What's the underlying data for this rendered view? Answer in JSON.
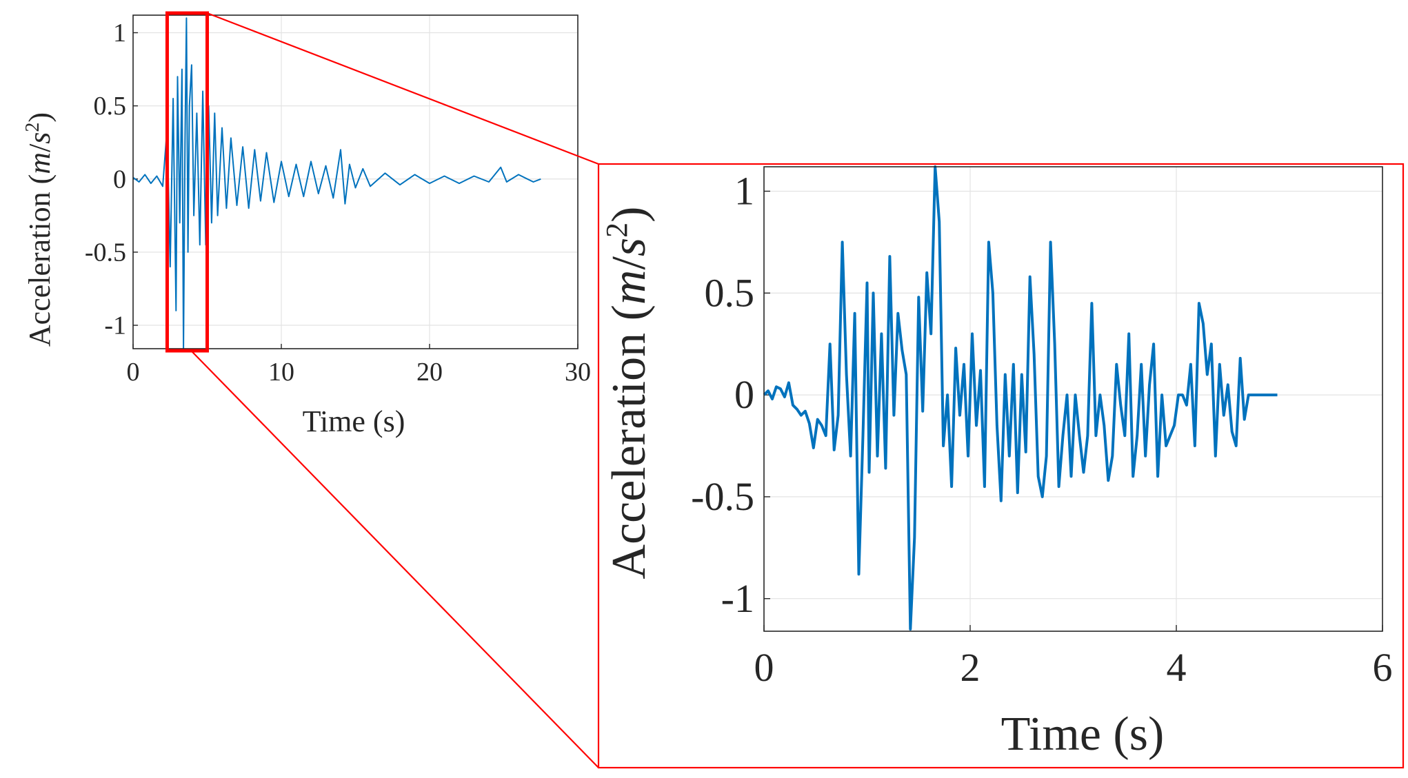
{
  "colors": {
    "series": "#0072BD",
    "zoom": "#ff0000",
    "grid": "#e3e3e3",
    "axis": "#262626"
  },
  "chart_data": [
    {
      "type": "line",
      "id": "full-record",
      "xlabel": "Time (s)",
      "ylabel": "Acceleration",
      "ylabel_unit_open": "(",
      "ylabel_unit_var": "m",
      "ylabel_unit_slash": "/",
      "ylabel_unit_var2": "s",
      "ylabel_unit_exp": "2",
      "ylabel_unit_close": ")",
      "xlim": [
        0,
        30
      ],
      "ylim": [
        -1.16,
        1.12
      ],
      "xticks": [
        0,
        10,
        20,
        30
      ],
      "xtick_labels": [
        "0",
        "10",
        "20",
        "30"
      ],
      "yticks": [
        -1,
        -0.5,
        0,
        0.5,
        1
      ],
      "ytick_labels": [
        "-1",
        "-0.5",
        "0",
        "0.5",
        "1"
      ],
      "grid": true,
      "series": [
        {
          "name": "acceleration",
          "x": [
            0,
            0.4,
            0.8,
            1.2,
            1.6,
            2.0,
            2.3,
            2.5,
            2.7,
            2.9,
            3.0,
            3.15,
            3.3,
            3.4,
            3.5,
            3.6,
            3.7,
            3.8,
            3.95,
            4.1,
            4.3,
            4.5,
            4.7,
            4.9,
            5.1,
            5.3,
            5.5,
            5.7,
            6.0,
            6.3,
            6.6,
            7.0,
            7.4,
            7.8,
            8.2,
            8.6,
            9.0,
            9.5,
            10.0,
            10.5,
            11.0,
            11.5,
            12.0,
            12.5,
            13.0,
            13.5,
            14.0,
            14.3,
            14.6,
            15.0,
            15.5,
            16.0,
            17.0,
            18.0,
            19.0,
            20.0,
            21.0,
            22.0,
            23.0,
            24.0,
            24.8,
            25.2,
            26.0,
            27.0,
            27.5
          ],
          "values": [
            0.01,
            -0.02,
            0.03,
            -0.03,
            0.02,
            -0.05,
            0.35,
            -0.6,
            0.55,
            -0.9,
            0.7,
            -0.3,
            0.75,
            -1.16,
            0.25,
            1.1,
            -0.5,
            0.5,
            0.78,
            -0.25,
            0.45,
            -0.45,
            0.6,
            -0.45,
            0.5,
            -0.3,
            0.45,
            -0.25,
            0.35,
            -0.2,
            0.28,
            -0.18,
            0.22,
            -0.2,
            0.2,
            -0.15,
            0.18,
            -0.16,
            0.12,
            -0.12,
            0.1,
            -0.12,
            0.12,
            -0.1,
            0.09,
            -0.13,
            0.2,
            -0.17,
            0.1,
            -0.06,
            0.07,
            -0.05,
            0.04,
            -0.04,
            0.03,
            -0.03,
            0.02,
            -0.03,
            0.02,
            -0.02,
            0.08,
            -0.02,
            0.03,
            -0.02,
            0.0
          ]
        }
      ],
      "zoom_window_x": [
        2.3,
        5.0
      ]
    },
    {
      "type": "line",
      "id": "zoomed-window",
      "xlabel": "Time (s)",
      "ylabel": "Acceleration",
      "ylabel_unit_open": "(",
      "ylabel_unit_var": "m",
      "ylabel_unit_slash": "/",
      "ylabel_unit_var2": "s",
      "ylabel_unit_exp": "2",
      "ylabel_unit_close": ")",
      "xlim": [
        0,
        6
      ],
      "ylim": [
        -1.16,
        1.12
      ],
      "xticks": [
        0,
        2,
        4,
        6
      ],
      "xtick_labels": [
        "0",
        "2",
        "4",
        "6"
      ],
      "yticks": [
        -1,
        -0.5,
        0,
        0.5,
        1
      ],
      "ytick_labels": [
        "-1",
        "-0.5",
        "0",
        "0.5",
        "1"
      ],
      "grid": true,
      "series": [
        {
          "name": "acceleration",
          "x": [
            0,
            0.04,
            0.08,
            0.12,
            0.16,
            0.2,
            0.24,
            0.28,
            0.32,
            0.36,
            0.4,
            0.44,
            0.48,
            0.52,
            0.56,
            0.6,
            0.64,
            0.68,
            0.72,
            0.76,
            0.8,
            0.84,
            0.88,
            0.92,
            0.96,
            1.0,
            1.02,
            1.06,
            1.1,
            1.14,
            1.18,
            1.22,
            1.26,
            1.3,
            1.34,
            1.38,
            1.42,
            1.46,
            1.5,
            1.54,
            1.58,
            1.62,
            1.66,
            1.7,
            1.74,
            1.78,
            1.82,
            1.86,
            1.9,
            1.94,
            1.98,
            2.02,
            2.06,
            2.1,
            2.14,
            2.18,
            2.22,
            2.26,
            2.3,
            2.34,
            2.38,
            2.42,
            2.46,
            2.5,
            2.54,
            2.58,
            2.62,
            2.66,
            2.7,
            2.74,
            2.78,
            2.82,
            2.86,
            2.9,
            2.94,
            2.98,
            3.02,
            3.06,
            3.1,
            3.14,
            3.18,
            3.22,
            3.26,
            3.3,
            3.34,
            3.38,
            3.42,
            3.46,
            3.5,
            3.54,
            3.58,
            3.62,
            3.66,
            3.7,
            3.74,
            3.78,
            3.82,
            3.86,
            3.9,
            3.94,
            3.98,
            4.02,
            4.06,
            4.1,
            4.14,
            4.18,
            4.22,
            4.26,
            4.3,
            4.34,
            4.38,
            4.42,
            4.46,
            4.5,
            4.54,
            4.58,
            4.62,
            4.66,
            4.7,
            4.74,
            4.78,
            4.82,
            4.86,
            4.9,
            4.94,
            4.98
          ],
          "values": [
            0.0,
            0.02,
            -0.02,
            0.04,
            0.03,
            -0.01,
            0.06,
            -0.05,
            -0.07,
            -0.1,
            -0.08,
            -0.14,
            -0.26,
            -0.12,
            -0.15,
            -0.2,
            0.25,
            -0.27,
            -0.1,
            0.75,
            0.1,
            -0.3,
            0.4,
            -0.88,
            -0.2,
            0.55,
            -0.38,
            0.5,
            -0.3,
            0.3,
            -0.36,
            0.68,
            -0.1,
            0.4,
            0.22,
            0.1,
            -1.15,
            -0.7,
            0.48,
            -0.08,
            0.6,
            0.3,
            1.12,
            0.85,
            -0.25,
            0.0,
            -0.45,
            0.23,
            -0.1,
            0.15,
            -0.3,
            0.3,
            -0.15,
            0.12,
            -0.45,
            0.75,
            0.5,
            -0.15,
            -0.52,
            0.1,
            -0.3,
            0.15,
            -0.48,
            0.1,
            -0.28,
            0.58,
            0.2,
            -0.4,
            -0.5,
            -0.3,
            0.75,
            0.25,
            -0.45,
            -0.2,
            0.0,
            -0.4,
            0.0,
            -0.2,
            -0.38,
            -0.2,
            0.45,
            -0.2,
            0.0,
            -0.15,
            -0.42,
            -0.3,
            0.15,
            -0.05,
            -0.2,
            0.3,
            -0.4,
            -0.2,
            0.15,
            -0.3,
            0.05,
            0.25,
            -0.4,
            0.0,
            -0.25,
            -0.2,
            -0.15,
            0.0,
            0.0,
            -0.05,
            0.15,
            -0.25,
            0.45,
            0.35,
            0.1,
            0.25,
            -0.3,
            0.15,
            -0.1,
            0.05,
            -0.18,
            -0.25,
            0.18,
            -0.12,
            0.0,
            0.0,
            0.0,
            0.0,
            0.0,
            0.0,
            0.0,
            0.0
          ]
        }
      ]
    }
  ]
}
